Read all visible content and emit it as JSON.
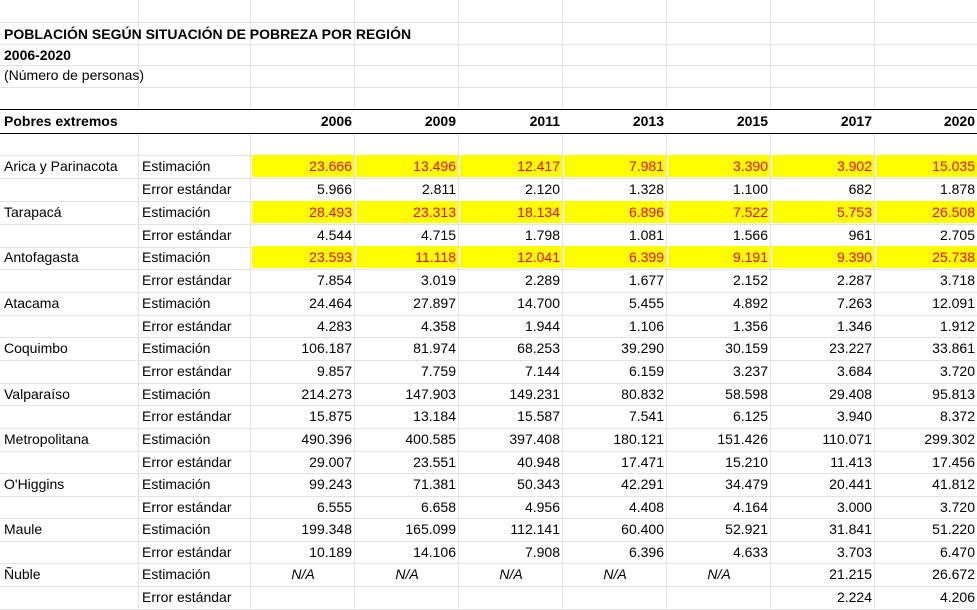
{
  "title": "POBLACIÓN SEGÚN SITUACIÓN DE POBREZA POR REGIÓN",
  "subtitle": "2006-2020",
  "unit": "(Número de personas)",
  "header": {
    "label": "Pobres extremos",
    "years": [
      "2006",
      "2009",
      "2011",
      "2013",
      "2015",
      "2017",
      "2020"
    ]
  },
  "highlight_color": "#ffff00",
  "highlight_text_color": "#ff0000",
  "rows": [
    {
      "region": "Arica y Parinacota",
      "metric": "Estimación",
      "values": [
        "23.666",
        "13.496",
        "12.417",
        "7.981",
        "3.390",
        "3.902",
        "15.035"
      ],
      "highlight": true
    },
    {
      "region": "",
      "metric": "Error estándar",
      "values": [
        "5.966",
        "2.811",
        "2.120",
        "1.328",
        "1.100",
        "682",
        "1.878"
      ],
      "highlight": false
    },
    {
      "region": "Tarapacá",
      "metric": "Estimación",
      "values": [
        "28.493",
        "23.313",
        "18.134",
        "6.896",
        "7.522",
        "5.753",
        "26.508"
      ],
      "highlight": true
    },
    {
      "region": "",
      "metric": "Error estándar",
      "values": [
        "4.544",
        "4.715",
        "1.798",
        "1.081",
        "1.566",
        "961",
        "2.705"
      ],
      "highlight": false
    },
    {
      "region": "Antofagasta",
      "metric": "Estimación",
      "values": [
        "23.593",
        "11.118",
        "12.041",
        "6.399",
        "9.191",
        "9.390",
        "25.738"
      ],
      "highlight": true
    },
    {
      "region": "",
      "metric": "Error estándar",
      "values": [
        "7.854",
        "3.019",
        "2.289",
        "1.677",
        "2.152",
        "2.287",
        "3.718"
      ],
      "highlight": false
    },
    {
      "region": "Atacama",
      "metric": "Estimación",
      "values": [
        "24.464",
        "27.897",
        "14.700",
        "5.455",
        "4.892",
        "7.263",
        "12.091"
      ],
      "highlight": false
    },
    {
      "region": "",
      "metric": "Error estándar",
      "values": [
        "4.283",
        "4.358",
        "1.944",
        "1.106",
        "1.356",
        "1.346",
        "1.912"
      ],
      "highlight": false
    },
    {
      "region": "Coquimbo",
      "metric": "Estimación",
      "values": [
        "106.187",
        "81.974",
        "68.253",
        "39.290",
        "30.159",
        "23.227",
        "33.861"
      ],
      "highlight": false
    },
    {
      "region": "",
      "metric": "Error estándar",
      "values": [
        "9.857",
        "7.759",
        "7.144",
        "6.159",
        "3.237",
        "3.684",
        "3.720"
      ],
      "highlight": false
    },
    {
      "region": "Valparaíso",
      "metric": "Estimación",
      "values": [
        "214.273",
        "147.903",
        "149.231",
        "80.832",
        "58.598",
        "29.408",
        "95.813"
      ],
      "highlight": false
    },
    {
      "region": "",
      "metric": "Error estándar",
      "values": [
        "15.875",
        "13.184",
        "15.587",
        "7.541",
        "6.125",
        "3.940",
        "8.372"
      ],
      "highlight": false
    },
    {
      "region": "Metropolitana",
      "metric": "Estimación",
      "values": [
        "490.396",
        "400.585",
        "397.408",
        "180.121",
        "151.426",
        "110.071",
        "299.302"
      ],
      "highlight": false
    },
    {
      "region": "",
      "metric": "Error estándar",
      "values": [
        "29.007",
        "23.551",
        "40.948",
        "17.471",
        "15.210",
        "11.413",
        "17.456"
      ],
      "highlight": false
    },
    {
      "region": "O'Higgins",
      "metric": "Estimación",
      "values": [
        "99.243",
        "71.381",
        "50.343",
        "42.291",
        "34.479",
        "20.441",
        "41.812"
      ],
      "highlight": false
    },
    {
      "region": "",
      "metric": "Error estándar",
      "values": [
        "6.555",
        "6.658",
        "4.956",
        "4.408",
        "4.164",
        "3.000",
        "3.720"
      ],
      "highlight": false
    },
    {
      "region": "Maule",
      "metric": "Estimación",
      "values": [
        "199.348",
        "165.099",
        "112.141",
        "60.400",
        "52.921",
        "31.841",
        "51.220"
      ],
      "highlight": false
    },
    {
      "region": "",
      "metric": "Error estándar",
      "values": [
        "10.189",
        "14.106",
        "7.908",
        "6.396",
        "4.633",
        "3.703",
        "6.470"
      ],
      "highlight": false
    },
    {
      "region": "Ñuble",
      "metric": "Estimación",
      "values": [
        "N/A",
        "N/A",
        "N/A",
        "N/A",
        "N/A",
        "21.215",
        "26.672"
      ],
      "highlight": false
    },
    {
      "region": "",
      "metric": "Error estándar",
      "values": [
        "",
        "",
        "",
        "",
        "",
        "2.224",
        "4.206"
      ],
      "highlight": false
    }
  ]
}
